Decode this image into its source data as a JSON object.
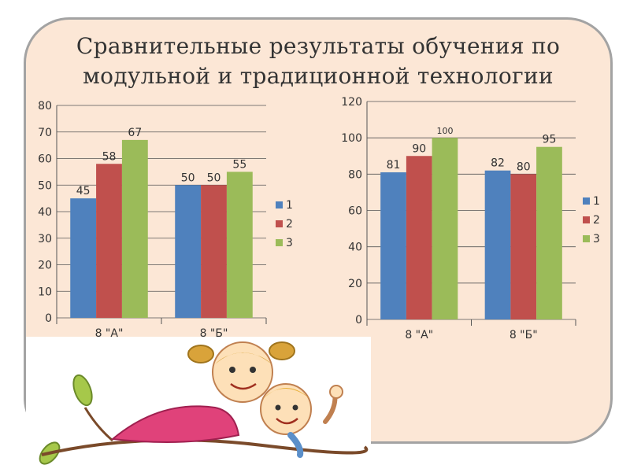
{
  "title": {
    "line1": "Сравнительные результаты обучения по",
    "line2": "модульной и традиционной технологии"
  },
  "colors": {
    "series1": "#4f81bd",
    "series2": "#c0504d",
    "series3": "#9bbb59",
    "panel": "#fce7d6",
    "grid": "#555555"
  },
  "chart_data": [
    {
      "type": "bar",
      "categories": [
        "8 \"А\"",
        "8 \"Б\""
      ],
      "series": [
        {
          "name": "1",
          "values": [
            45,
            50
          ]
        },
        {
          "name": "2",
          "values": [
            58,
            50
          ]
        },
        {
          "name": "3",
          "values": [
            67,
            55
          ]
        }
      ],
      "ylim": [
        0,
        80
      ],
      "yticks": [
        "0",
        "10",
        "20",
        "30",
        "40",
        "50",
        "60",
        "70",
        "80"
      ],
      "grid": true,
      "legend": "right"
    },
    {
      "type": "bar",
      "categories": [
        "8 \"А\"",
        "8 \"Б\""
      ],
      "series": [
        {
          "name": "1",
          "values": [
            81,
            82
          ]
        },
        {
          "name": "2",
          "values": [
            90,
            80
          ]
        },
        {
          "name": "3",
          "values": [
            100,
            95
          ]
        }
      ],
      "ylim": [
        0,
        120
      ],
      "yticks": [
        "0",
        "20",
        "40",
        "60",
        "80",
        "100",
        "120"
      ],
      "grid": true,
      "legend": "right"
    }
  ],
  "illustration": {
    "description_icon": "two-children-cartoon-icon"
  }
}
